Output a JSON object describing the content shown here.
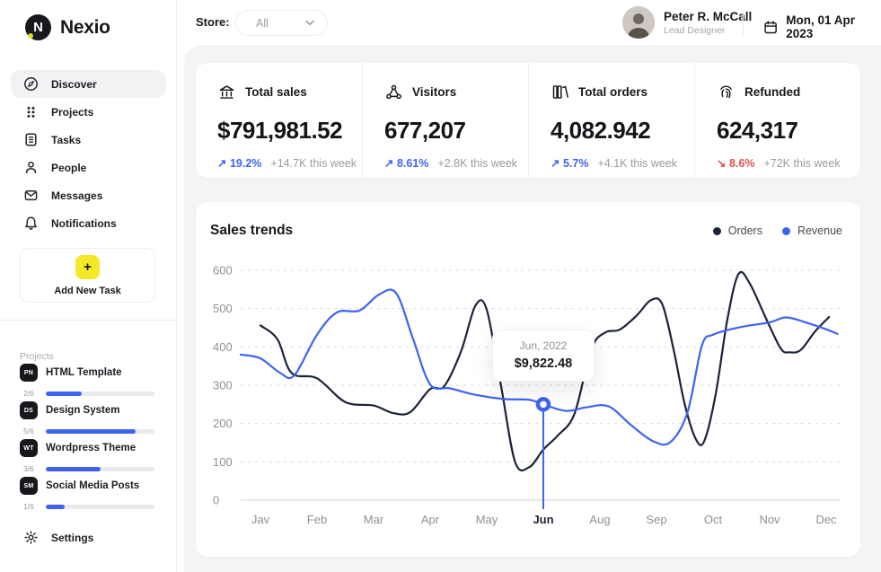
{
  "brand": {
    "name": "Nexio"
  },
  "icons": {
    "add": "+",
    "trend_up": "↗",
    "trend_down": "↘"
  },
  "colors": {
    "accent_blue": "#3e63f1",
    "navy": "#1b2339",
    "red": "#e0524e",
    "yellow": "#f5e829",
    "panel_bg": "#f4f4f6"
  },
  "topbar": {
    "store_label": "Store:",
    "store_value": "All",
    "user_name": "Peter R. McCall",
    "user_role": "Lead Designer",
    "date": "Mon, 01 Apr 2023"
  },
  "sidebar": {
    "items": [
      {
        "label": "Discover",
        "active": true
      },
      {
        "label": "Projects",
        "active": false
      },
      {
        "label": "Tasks",
        "active": false
      },
      {
        "label": "People",
        "active": false
      },
      {
        "label": "Messages",
        "active": false
      },
      {
        "label": "Notifications",
        "active": false
      }
    ],
    "add_task_label": "Add New Task",
    "projects_heading": "Projects",
    "projects": [
      {
        "badge": "PN",
        "name": "HTML Template",
        "fraction": "2/6",
        "progress_pct": "33%"
      },
      {
        "badge": "DS",
        "name": "Design System",
        "fraction": "5/6",
        "progress_pct": "83%"
      },
      {
        "badge": "WT",
        "name": "Wordpress Theme",
        "fraction": "3/6",
        "progress_pct": "50%"
      },
      {
        "badge": "SM",
        "name": "Social Media Posts",
        "fraction": "1/6",
        "progress_pct": "17%"
      }
    ],
    "settings_label": "Settings"
  },
  "stats": {
    "cards": [
      {
        "icon": "bank-icon",
        "title": "Total sales",
        "value": "$791,981.52",
        "arrow": "↗",
        "trend_pct": "19.2%",
        "trend_color": "#3e63f1",
        "trend_note": "+14.7K this week"
      },
      {
        "icon": "share-network-icon",
        "title": "Visitors",
        "value": "677,207",
        "arrow": "↗",
        "trend_pct": "8.61%",
        "trend_color": "#3e63f1",
        "trend_note": "+2.8K this week"
      },
      {
        "icon": "books-icon",
        "title": "Total orders",
        "value": "4,082.942",
        "arrow": "↗",
        "trend_pct": "5.7%",
        "trend_color": "#3e63f1",
        "trend_note": "+4.1K this week"
      },
      {
        "icon": "fingerprint-icon",
        "title": "Refunded",
        "value": "624,317",
        "arrow": "↘",
        "trend_pct": "8.6%",
        "trend_color": "#e0524e",
        "trend_note": "+72K this week"
      }
    ]
  },
  "chart_data": {
    "type": "line",
    "title": "Sales trends",
    "x_labels": [
      "Jav",
      "Feb",
      "Mar",
      "Apr",
      "May",
      "Jun",
      "Aug",
      "Sep",
      "Oct",
      "Nov",
      "Dec"
    ],
    "highlight_x": "Jun",
    "ylim": [
      0,
      600
    ],
    "yticks": [
      0,
      100,
      200,
      300,
      400,
      500,
      600
    ],
    "grid": "horizontal-dashed",
    "legend_position": "top-right",
    "series": [
      {
        "name": "Orders",
        "color": "#1b2339",
        "values": [
          456,
          318,
          247,
          290,
          500,
          132,
          438,
          520,
          270,
          470,
          478
        ],
        "samples": [
          [
            0,
            456
          ],
          [
            0.3,
            420
          ],
          [
            0.55,
            332
          ],
          [
            1,
            318
          ],
          [
            1.5,
            256
          ],
          [
            2,
            247
          ],
          [
            2.35,
            227
          ],
          [
            2.65,
            230
          ],
          [
            3,
            290
          ],
          [
            3.25,
            298
          ],
          [
            3.55,
            390
          ],
          [
            3.8,
            508
          ],
          [
            4,
            497
          ],
          [
            4.25,
            300
          ],
          [
            4.5,
            100
          ],
          [
            4.75,
            86
          ],
          [
            5,
            132
          ],
          [
            5.25,
            168
          ],
          [
            5.55,
            225
          ],
          [
            5.85,
            395
          ],
          [
            6.1,
            438
          ],
          [
            6.35,
            445
          ],
          [
            6.65,
            482
          ],
          [
            6.9,
            522
          ],
          [
            7.1,
            512
          ],
          [
            7.3,
            395
          ],
          [
            7.5,
            250
          ],
          [
            7.7,
            158
          ],
          [
            7.85,
            156
          ],
          [
            8.05,
            280
          ],
          [
            8.25,
            470
          ],
          [
            8.45,
            590
          ],
          [
            8.65,
            565
          ],
          [
            8.95,
            470
          ],
          [
            9.2,
            395
          ],
          [
            9.35,
            386
          ],
          [
            9.55,
            392
          ],
          [
            9.8,
            440
          ],
          [
            10.05,
            478
          ]
        ]
      },
      {
        "name": "Revenue",
        "color": "#3e63f1",
        "values": [
          370,
          432,
          495,
          302,
          264,
          250,
          244,
          153,
          432,
          464,
          446
        ],
        "samples": [
          [
            -0.35,
            380
          ],
          [
            0,
            370
          ],
          [
            0.35,
            332
          ],
          [
            0.6,
            326
          ],
          [
            1,
            432
          ],
          [
            1.35,
            490
          ],
          [
            1.75,
            495
          ],
          [
            2.1,
            537
          ],
          [
            2.4,
            540
          ],
          [
            2.7,
            420
          ],
          [
            3,
            302
          ],
          [
            3.35,
            292
          ],
          [
            3.8,
            275
          ],
          [
            4.3,
            264
          ],
          [
            4.75,
            262
          ],
          [
            5,
            250
          ],
          [
            5.4,
            233
          ],
          [
            5.75,
            242
          ],
          [
            6.15,
            245
          ],
          [
            6.55,
            196
          ],
          [
            6.95,
            153
          ],
          [
            7.25,
            152
          ],
          [
            7.55,
            230
          ],
          [
            7.8,
            402
          ],
          [
            8,
            432
          ],
          [
            8.5,
            452
          ],
          [
            9,
            464
          ],
          [
            9.3,
            477
          ],
          [
            9.7,
            461
          ],
          [
            10,
            446
          ],
          [
            10.2,
            434
          ]
        ]
      }
    ],
    "tooltip": {
      "label": "Jun, 2022",
      "value": "$9,822.48",
      "series": "Revenue",
      "month_index": 5,
      "point_value": 250,
      "color": "#3e63f1"
    }
  }
}
